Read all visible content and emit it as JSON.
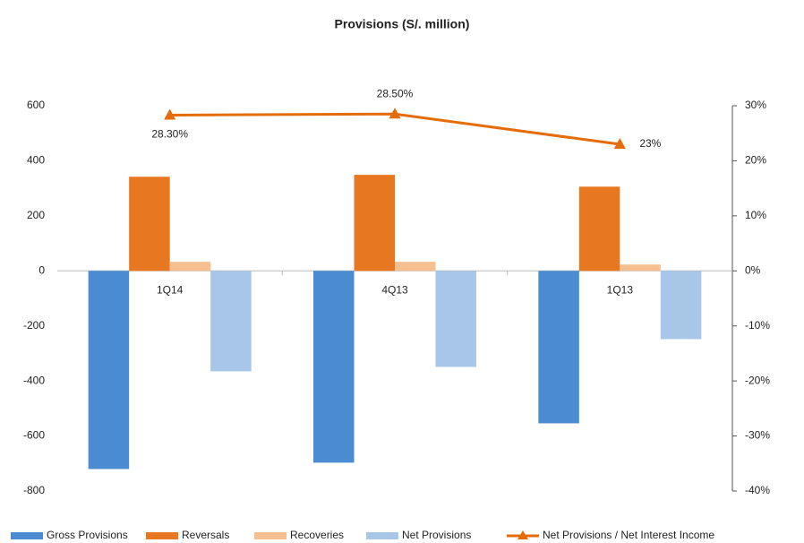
{
  "chart_data": {
    "type": "bar",
    "title": "Provisions (S/. million)",
    "categories": [
      "1Q14",
      "4Q13",
      "1Q13"
    ],
    "series": [
      {
        "name": "Gross Provisions",
        "color": "#4a8bd1",
        "values": [
          -720,
          -697,
          -554
        ]
      },
      {
        "name": "Reversals",
        "color": "#e87722",
        "values": [
          342,
          349,
          306
        ]
      },
      {
        "name": "Recoveries",
        "color": "#f5bf8f",
        "values": [
          33,
          33,
          23
        ]
      },
      {
        "name": "Net Provisions",
        "color": "#a7c6e8",
        "values": [
          -365,
          -349,
          -248
        ]
      },
      {
        "name": "Net Provisions / Net Interest Income",
        "color": "#e46c0a",
        "type": "line",
        "axis": "y2",
        "values": [
          28.3,
          28.5,
          23
        ],
        "value_labels": [
          "28.30%",
          "28.50%",
          "23%"
        ]
      }
    ],
    "ylim": [
      -800,
      600
    ],
    "yticks": [
      -800,
      -600,
      -400,
      -200,
      0,
      200,
      400,
      600
    ],
    "y2lim": [
      -40,
      30
    ],
    "y2ticks": [
      {
        "value": -40,
        "label": "-40%"
      },
      {
        "value": -30,
        "label": "-30%"
      },
      {
        "value": -20,
        "label": "-20%"
      },
      {
        "value": -10,
        "label": "-10%"
      },
      {
        "value": 0,
        "label": "0%"
      },
      {
        "value": 10,
        "label": "10%"
      },
      {
        "value": 20,
        "label": "20%"
      },
      {
        "value": 30,
        "label": "30%"
      }
    ],
    "legend": "bottom"
  }
}
